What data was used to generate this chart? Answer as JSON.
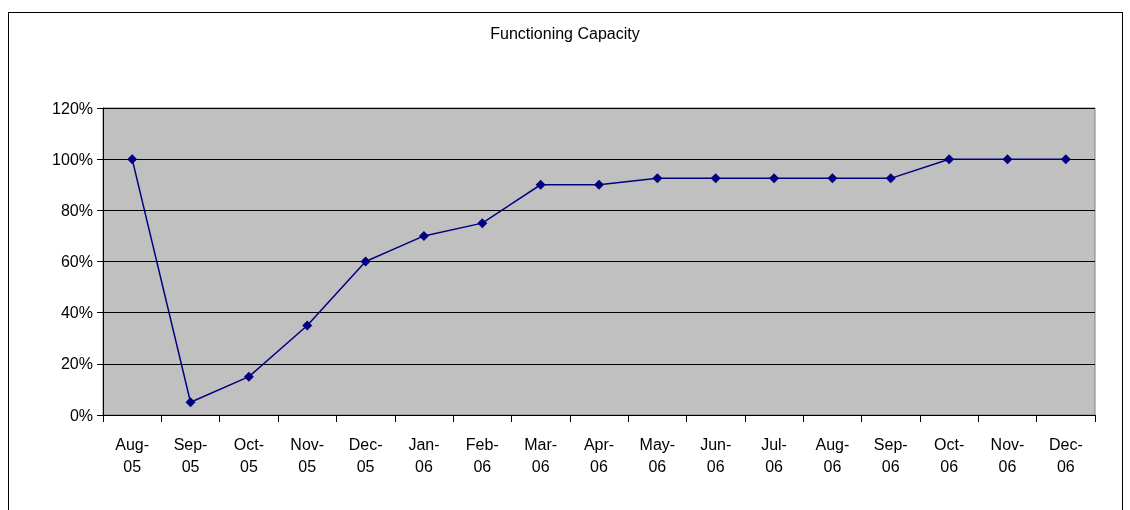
{
  "chart_data": {
    "type": "line",
    "title": "Functioning Capacity",
    "categories": [
      "Aug-05",
      "Sep-05",
      "Oct-05",
      "Nov-05",
      "Dec-05",
      "Jan-06",
      "Feb-06",
      "Mar-06",
      "Apr-06",
      "May-06",
      "Jun-06",
      "Jul-06",
      "Aug-06",
      "Sep-06",
      "Oct-06",
      "Nov-06",
      "Dec-06"
    ],
    "series": [
      {
        "color": "#000080",
        "values": [
          100,
          5,
          15,
          35,
          60,
          70,
          75,
          90,
          90,
          92.5,
          92.5,
          92.5,
          92.5,
          92.5,
          100,
          100,
          100
        ]
      }
    ],
    "ylim": [
      0,
      120
    ],
    "yticks": [
      {
        "value": 0,
        "label": "0%"
      },
      {
        "value": 20,
        "label": "20%"
      },
      {
        "value": 40,
        "label": "40%"
      },
      {
        "value": 60,
        "label": "60%"
      },
      {
        "value": 80,
        "label": "80%"
      },
      {
        "value": 100,
        "label": "100%"
      },
      {
        "value": 120,
        "label": "120%"
      }
    ],
    "grid": "y",
    "marker": "diamond",
    "line_style": "solid"
  }
}
